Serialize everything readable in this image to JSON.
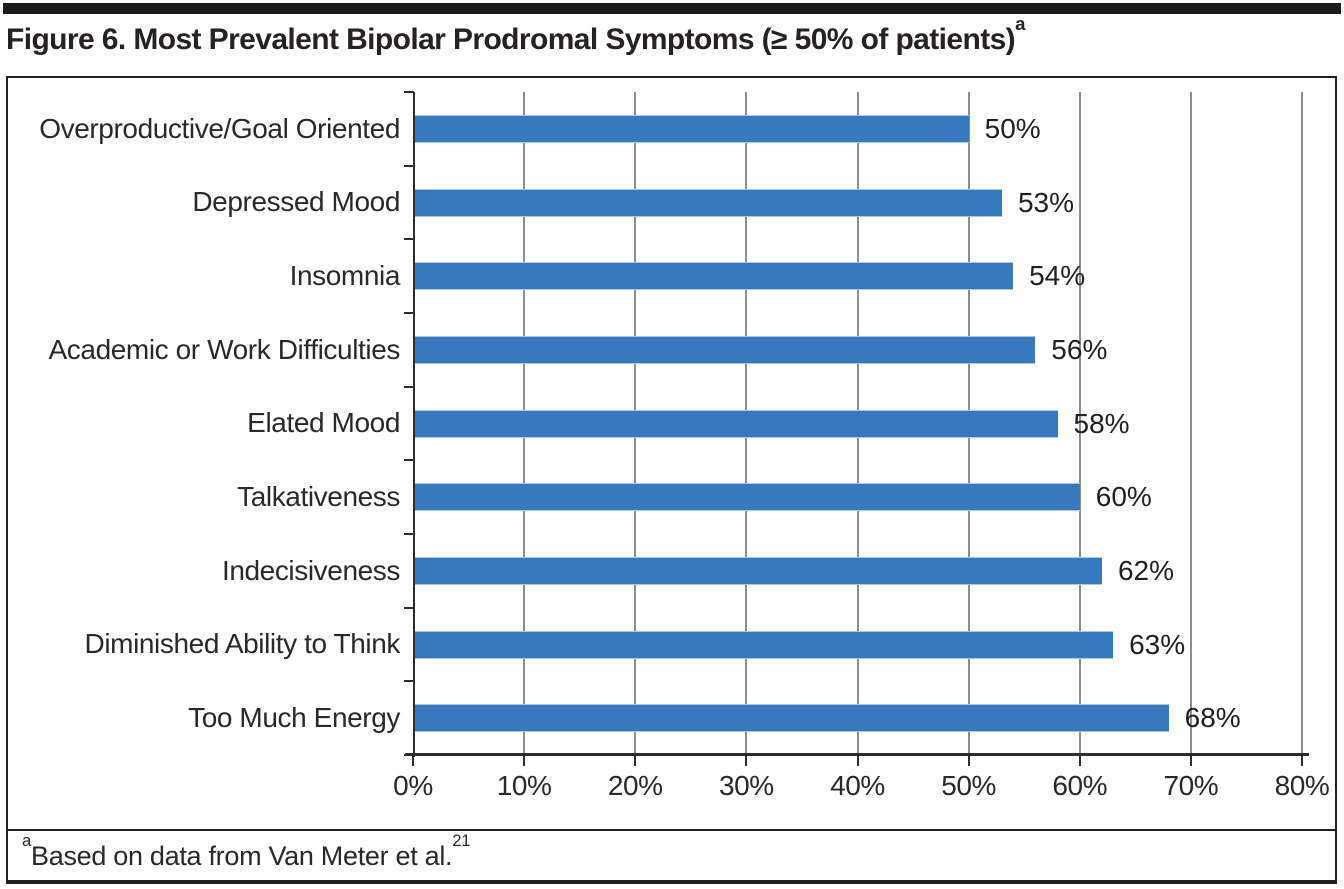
{
  "header": {
    "title": "Figure 6. Most Prevalent Bipolar Prodromal Symptoms (≥ 50% of patients)",
    "title_superscript": "a"
  },
  "chart_data": {
    "type": "bar",
    "orientation": "horizontal",
    "title": "Figure 6. Most Prevalent Bipolar Prodromal Symptoms (≥ 50% of patients)a",
    "categories": [
      "Overproductive/Goal Oriented",
      "Depressed Mood",
      "Insomnia",
      "Academic or Work Difficulties",
      "Elated Mood",
      "Talkativeness",
      "Indecisiveness",
      "Diminished Ability to Think",
      "Too Much Energy"
    ],
    "values": [
      50,
      53,
      54,
      56,
      58,
      60,
      62,
      63,
      68
    ],
    "value_labels": [
      "50%",
      "53%",
      "54%",
      "56%",
      "58%",
      "60%",
      "62%",
      "63%",
      "68%"
    ],
    "xlabel": "",
    "ylabel": "",
    "xlim": [
      0,
      80
    ],
    "x_tick_values": [
      0,
      10,
      20,
      30,
      40,
      50,
      60,
      70,
      80
    ],
    "x_tick_labels": [
      "0%",
      "10%",
      "20%",
      "30%",
      "40%",
      "50%",
      "60%",
      "70%",
      "80%"
    ],
    "grid": "vertical-gridlines-on",
    "legend": "none",
    "bar_color": "#3779BE",
    "bar_edge_color": "#AAC7E4",
    "gridline_color": "#8E8E8E",
    "axis_color": "#2D2D2D"
  },
  "footnote": {
    "superscript_prefix": "a",
    "text": "Based on data from Van Meter et al.",
    "superscript_reference": "21"
  }
}
